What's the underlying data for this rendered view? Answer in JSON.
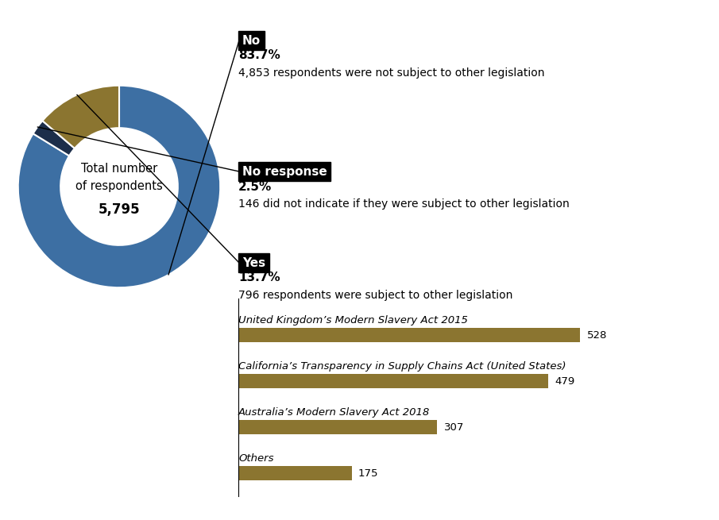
{
  "chart_data": [
    {
      "type": "pie",
      "categories": [
        "No",
        "No response",
        "Yes"
      ],
      "values": [
        83.7,
        2.5,
        13.7
      ],
      "value_labels": [
        "83.7%",
        "2.5%",
        "13.7%"
      ],
      "colors": [
        "#3D6FA3",
        "#1C2E4A",
        "#8B7530"
      ],
      "data_labels": true,
      "annotations": [
        "Total number",
        "of respondents",
        "5,795",
        "4,853 respondents were not subject to other legislation",
        "146 did not indicate if they were subject to other legislation",
        "796 respondents were subject to other legislation"
      ]
    },
    {
      "type": "bar",
      "orientation": "horizontal",
      "categories": [
        "United Kingdom’s Modern Slavery Act 2015",
        "California’s Transparency in Supply Chains Act (United States)",
        "Australia’s Modern Slavery Act 2018",
        "Others"
      ],
      "values": [
        528,
        479,
        307,
        175
      ],
      "color": "#8B7530",
      "xlim": [
        0,
        600
      ],
      "data_labels": true,
      "tick_labels": false
    }
  ]
}
